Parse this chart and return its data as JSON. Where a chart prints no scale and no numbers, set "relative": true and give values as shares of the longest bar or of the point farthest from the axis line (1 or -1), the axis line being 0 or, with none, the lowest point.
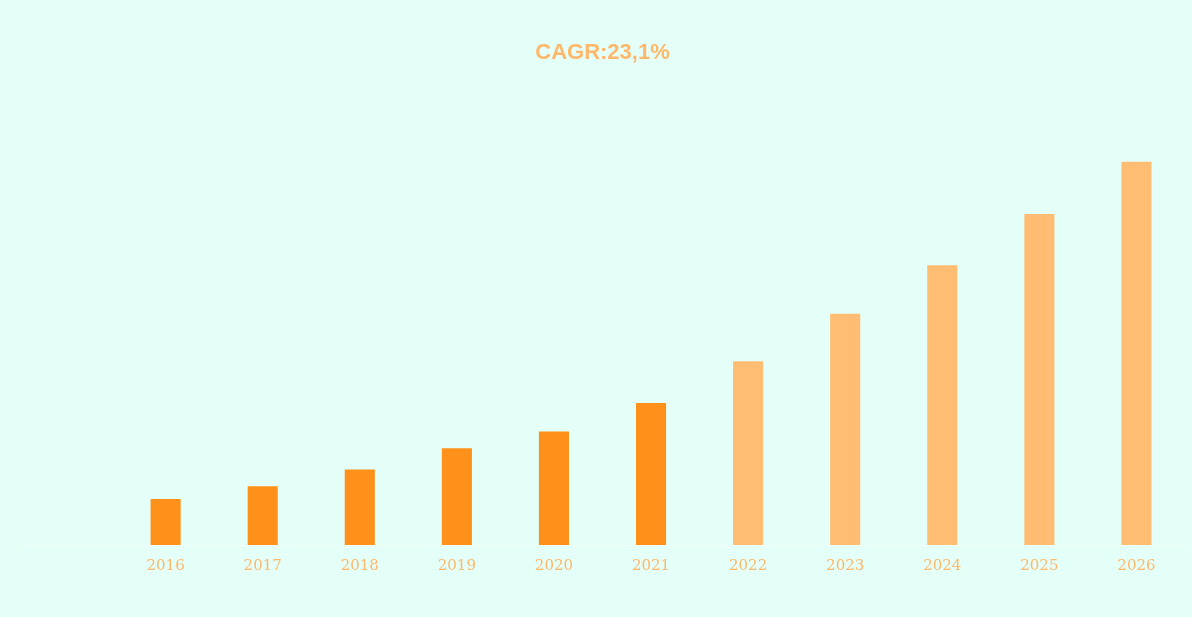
{
  "chart_data": {
    "type": "bar",
    "title": "CAGR:23,1%",
    "relative": true,
    "grid": false,
    "legend": false,
    "categories": [
      null,
      "2016",
      "2017",
      "2018",
      "2019",
      "2020",
      "2021",
      "2022",
      "2023",
      "2024",
      "2025",
      "2026"
    ],
    "values": [
      null,
      0.12,
      0.153,
      0.197,
      0.252,
      0.296,
      0.37,
      0.479,
      0.603,
      0.729,
      0.863,
      1
    ],
    "colors": [
      "#ff9019",
      "#ff9019",
      "#ff9019",
      "#ff9019",
      "#ff9019",
      "#ff9019",
      "#ff9019",
      "#ffbd73",
      "#ffbd73",
      "#ffbd73",
      "#ffbd73",
      "#ffbd73"
    ]
  }
}
